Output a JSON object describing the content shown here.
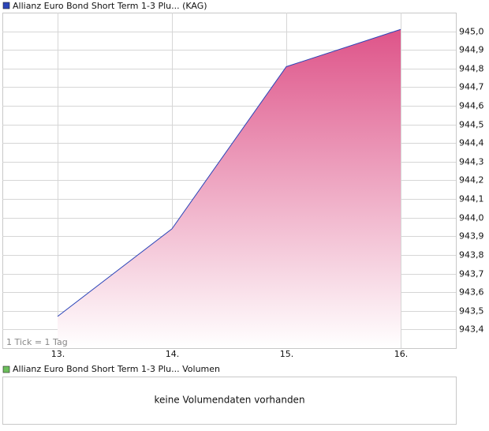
{
  "chart_data": {
    "type": "area",
    "categories": [
      "13.",
      "14.",
      "15.",
      "16."
    ],
    "series": [
      {
        "name": "Allianz Euro Bond Short Term 1-3 Plu... (KAG)",
        "color": "#2b45b8",
        "values": [
          943.47,
          943.94,
          944.81,
          945.01
        ]
      }
    ],
    "ylim": [
      943.3,
      945.1
    ],
    "yticks": [
      {
        "value": 945.0,
        "label": "945,0"
      },
      {
        "value": 944.9,
        "label": "944,9"
      },
      {
        "value": 944.8,
        "label": "944,8"
      },
      {
        "value": 944.7,
        "label": "944,7"
      },
      {
        "value": 944.6,
        "label": "944,6"
      },
      {
        "value": 944.5,
        "label": "944,5"
      },
      {
        "value": 944.4,
        "label": "944,4"
      },
      {
        "value": 944.3,
        "label": "944,3"
      },
      {
        "value": 944.2,
        "label": "944,2"
      },
      {
        "value": 944.1,
        "label": "944,1"
      },
      {
        "value": 944.0,
        "label": "944,0"
      },
      {
        "value": 943.9,
        "label": "943,9"
      },
      {
        "value": 943.8,
        "label": "943,8"
      },
      {
        "value": 943.7,
        "label": "943,7"
      },
      {
        "value": 943.6,
        "label": "943,6"
      },
      {
        "value": 943.5,
        "label": "943,5"
      },
      {
        "value": 943.4,
        "label": "943,4"
      }
    ],
    "grid": true,
    "annotation": "1 Tick = 1 Tag"
  },
  "volume_panel": {
    "legend": "Allianz Euro Bond Short Term 1-3 Plu... Volumen",
    "color": "#6cbf5c",
    "message": "keine Volumendaten vorhanden"
  }
}
